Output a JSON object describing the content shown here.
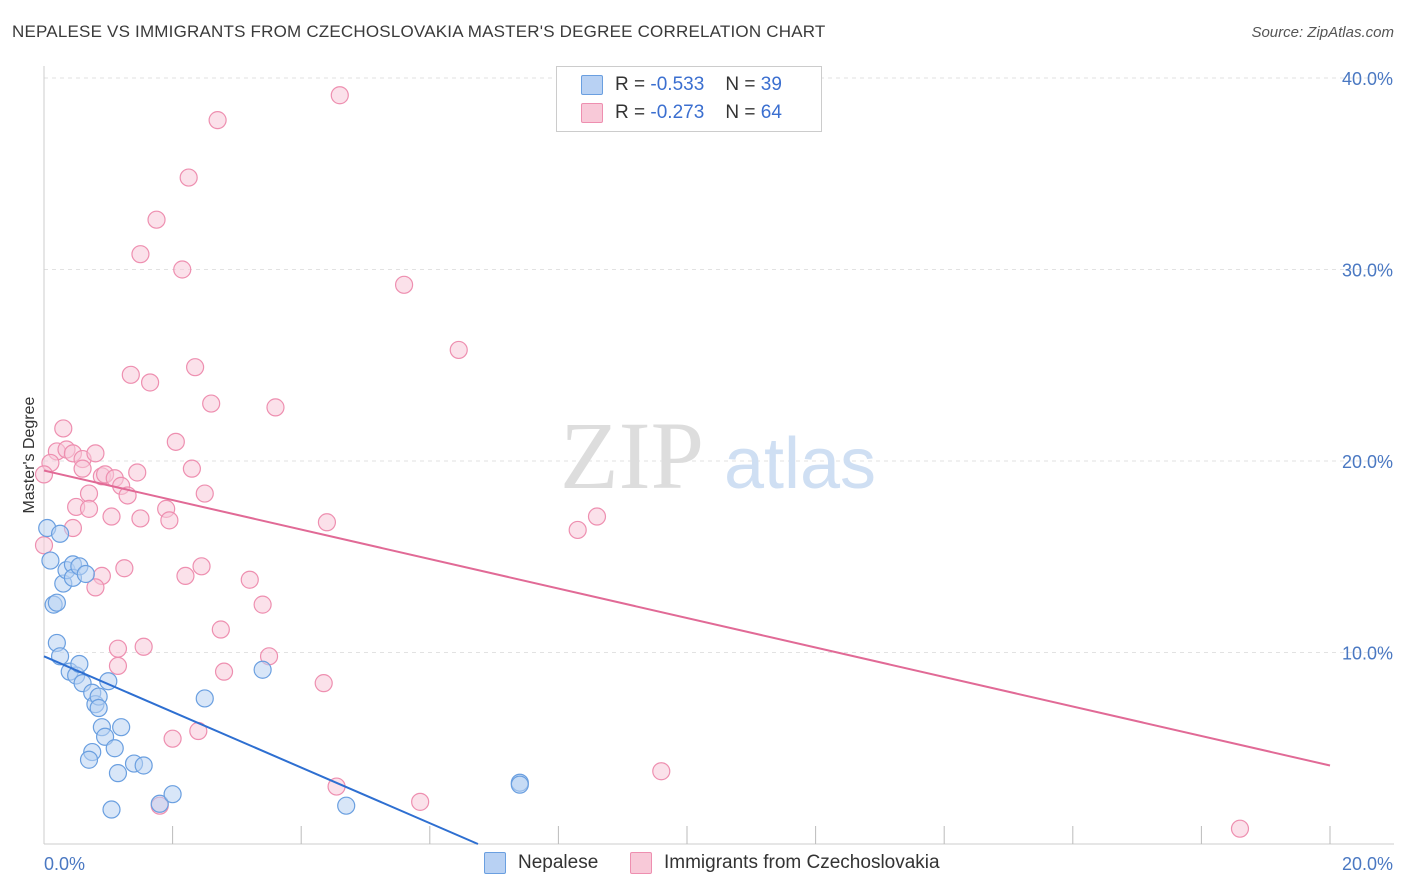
{
  "chart_data": {
    "type": "scatter",
    "title": "NEPALESE VS IMMIGRANTS FROM CZECHOSLOVAKIA MASTER'S DEGREE CORRELATION CHART",
    "source": "Source: ZipAtlas.com",
    "ylabel": "Master's Degree",
    "xlim": [
      0,
      20
    ],
    "ylim": [
      0,
      40
    ],
    "x_tick_labels": [
      "0.0%",
      "20.0%"
    ],
    "y_tick_labels": [
      "10.0%",
      "20.0%",
      "30.0%",
      "40.0%"
    ],
    "watermark": {
      "zip": "ZIP",
      "atlas": "atlas"
    },
    "legend": [
      {
        "r_label": "R =",
        "r_value": "-0.533",
        "n_label": "N =",
        "n_value": "39"
      },
      {
        "r_label": "R =",
        "r_value": "-0.273",
        "n_label": "N =",
        "n_value": "64"
      }
    ],
    "series": [
      {
        "name": "Nepalese",
        "color": "#6a9fe0",
        "fill": "#b8d1f3",
        "line_color": "#2e6fd1",
        "trend": {
          "x": [
            0.0,
            7.3
          ],
          "y": [
            9.8,
            -0.8
          ]
        },
        "points": [
          [
            0.05,
            16.5
          ],
          [
            0.1,
            14.8
          ],
          [
            0.25,
            16.2
          ],
          [
            0.15,
            12.5
          ],
          [
            0.2,
            12.6
          ],
          [
            0.3,
            13.6
          ],
          [
            0.35,
            14.3
          ],
          [
            0.45,
            14.6
          ],
          [
            0.45,
            13.9
          ],
          [
            0.55,
            14.5
          ],
          [
            0.65,
            14.1
          ],
          [
            0.2,
            10.5
          ],
          [
            0.25,
            9.8
          ],
          [
            0.4,
            9.0
          ],
          [
            0.5,
            8.8
          ],
          [
            0.55,
            9.4
          ],
          [
            0.6,
            8.4
          ],
          [
            0.75,
            7.9
          ],
          [
            0.8,
            7.3
          ],
          [
            0.85,
            7.7
          ],
          [
            0.85,
            7.1
          ],
          [
            0.9,
            6.1
          ],
          [
            1.0,
            8.5
          ],
          [
            0.95,
            5.6
          ],
          [
            1.2,
            6.1
          ],
          [
            0.75,
            4.8
          ],
          [
            0.7,
            4.4
          ],
          [
            1.1,
            5.0
          ],
          [
            1.15,
            3.7
          ],
          [
            1.4,
            4.2
          ],
          [
            1.55,
            4.1
          ],
          [
            1.05,
            1.8
          ],
          [
            1.8,
            2.1
          ],
          [
            2.0,
            2.6
          ],
          [
            2.5,
            7.6
          ],
          [
            3.4,
            9.1
          ],
          [
            4.7,
            2.0
          ],
          [
            7.4,
            3.2
          ],
          [
            7.4,
            3.1
          ]
        ]
      },
      {
        "name": "Immigrants from Czechoslovakia",
        "color": "#ee8fb0",
        "fill": "#f8c9d8",
        "line_color": "#e16a96",
        "trend": {
          "x": [
            0.0,
            20.0
          ],
          "y": [
            19.5,
            4.1
          ]
        },
        "points": [
          [
            4.6,
            39.1
          ],
          [
            2.7,
            37.8
          ],
          [
            2.25,
            34.8
          ],
          [
            1.75,
            32.6
          ],
          [
            1.5,
            30.8
          ],
          [
            2.15,
            30.0
          ],
          [
            5.6,
            29.2
          ],
          [
            6.45,
            25.8
          ],
          [
            1.35,
            24.5
          ],
          [
            1.65,
            24.1
          ],
          [
            2.35,
            24.9
          ],
          [
            2.6,
            23.0
          ],
          [
            3.6,
            22.8
          ],
          [
            0.3,
            21.7
          ],
          [
            0.2,
            20.5
          ],
          [
            0.35,
            20.6
          ],
          [
            0.45,
            20.4
          ],
          [
            0.1,
            19.9
          ],
          [
            0.6,
            20.1
          ],
          [
            0.8,
            20.4
          ],
          [
            0.6,
            19.6
          ],
          [
            0.9,
            19.2
          ],
          [
            0.95,
            19.3
          ],
          [
            1.1,
            19.1
          ],
          [
            1.45,
            19.4
          ],
          [
            2.05,
            21.0
          ],
          [
            2.3,
            19.6
          ],
          [
            0.0,
            19.3
          ],
          [
            0.7,
            18.3
          ],
          [
            1.2,
            18.7
          ],
          [
            1.3,
            18.2
          ],
          [
            2.5,
            18.3
          ],
          [
            0.5,
            17.6
          ],
          [
            0.7,
            17.5
          ],
          [
            1.05,
            17.1
          ],
          [
            1.9,
            17.5
          ],
          [
            1.5,
            17.0
          ],
          [
            1.95,
            16.9
          ],
          [
            4.4,
            16.8
          ],
          [
            8.6,
            17.1
          ],
          [
            8.3,
            16.4
          ],
          [
            0.45,
            16.5
          ],
          [
            0.0,
            15.6
          ],
          [
            1.25,
            14.4
          ],
          [
            2.45,
            14.5
          ],
          [
            0.9,
            14.0
          ],
          [
            2.2,
            14.0
          ],
          [
            3.2,
            13.8
          ],
          [
            0.8,
            13.4
          ],
          [
            3.4,
            12.5
          ],
          [
            2.75,
            11.2
          ],
          [
            1.55,
            10.3
          ],
          [
            1.15,
            10.2
          ],
          [
            3.5,
            9.8
          ],
          [
            1.15,
            9.3
          ],
          [
            2.8,
            9.0
          ],
          [
            4.35,
            8.4
          ],
          [
            2.4,
            5.9
          ],
          [
            2.0,
            5.5
          ],
          [
            9.6,
            3.8
          ],
          [
            4.55,
            3.0
          ],
          [
            1.8,
            2.0
          ],
          [
            5.85,
            2.2
          ],
          [
            18.6,
            0.8
          ]
        ]
      }
    ]
  }
}
